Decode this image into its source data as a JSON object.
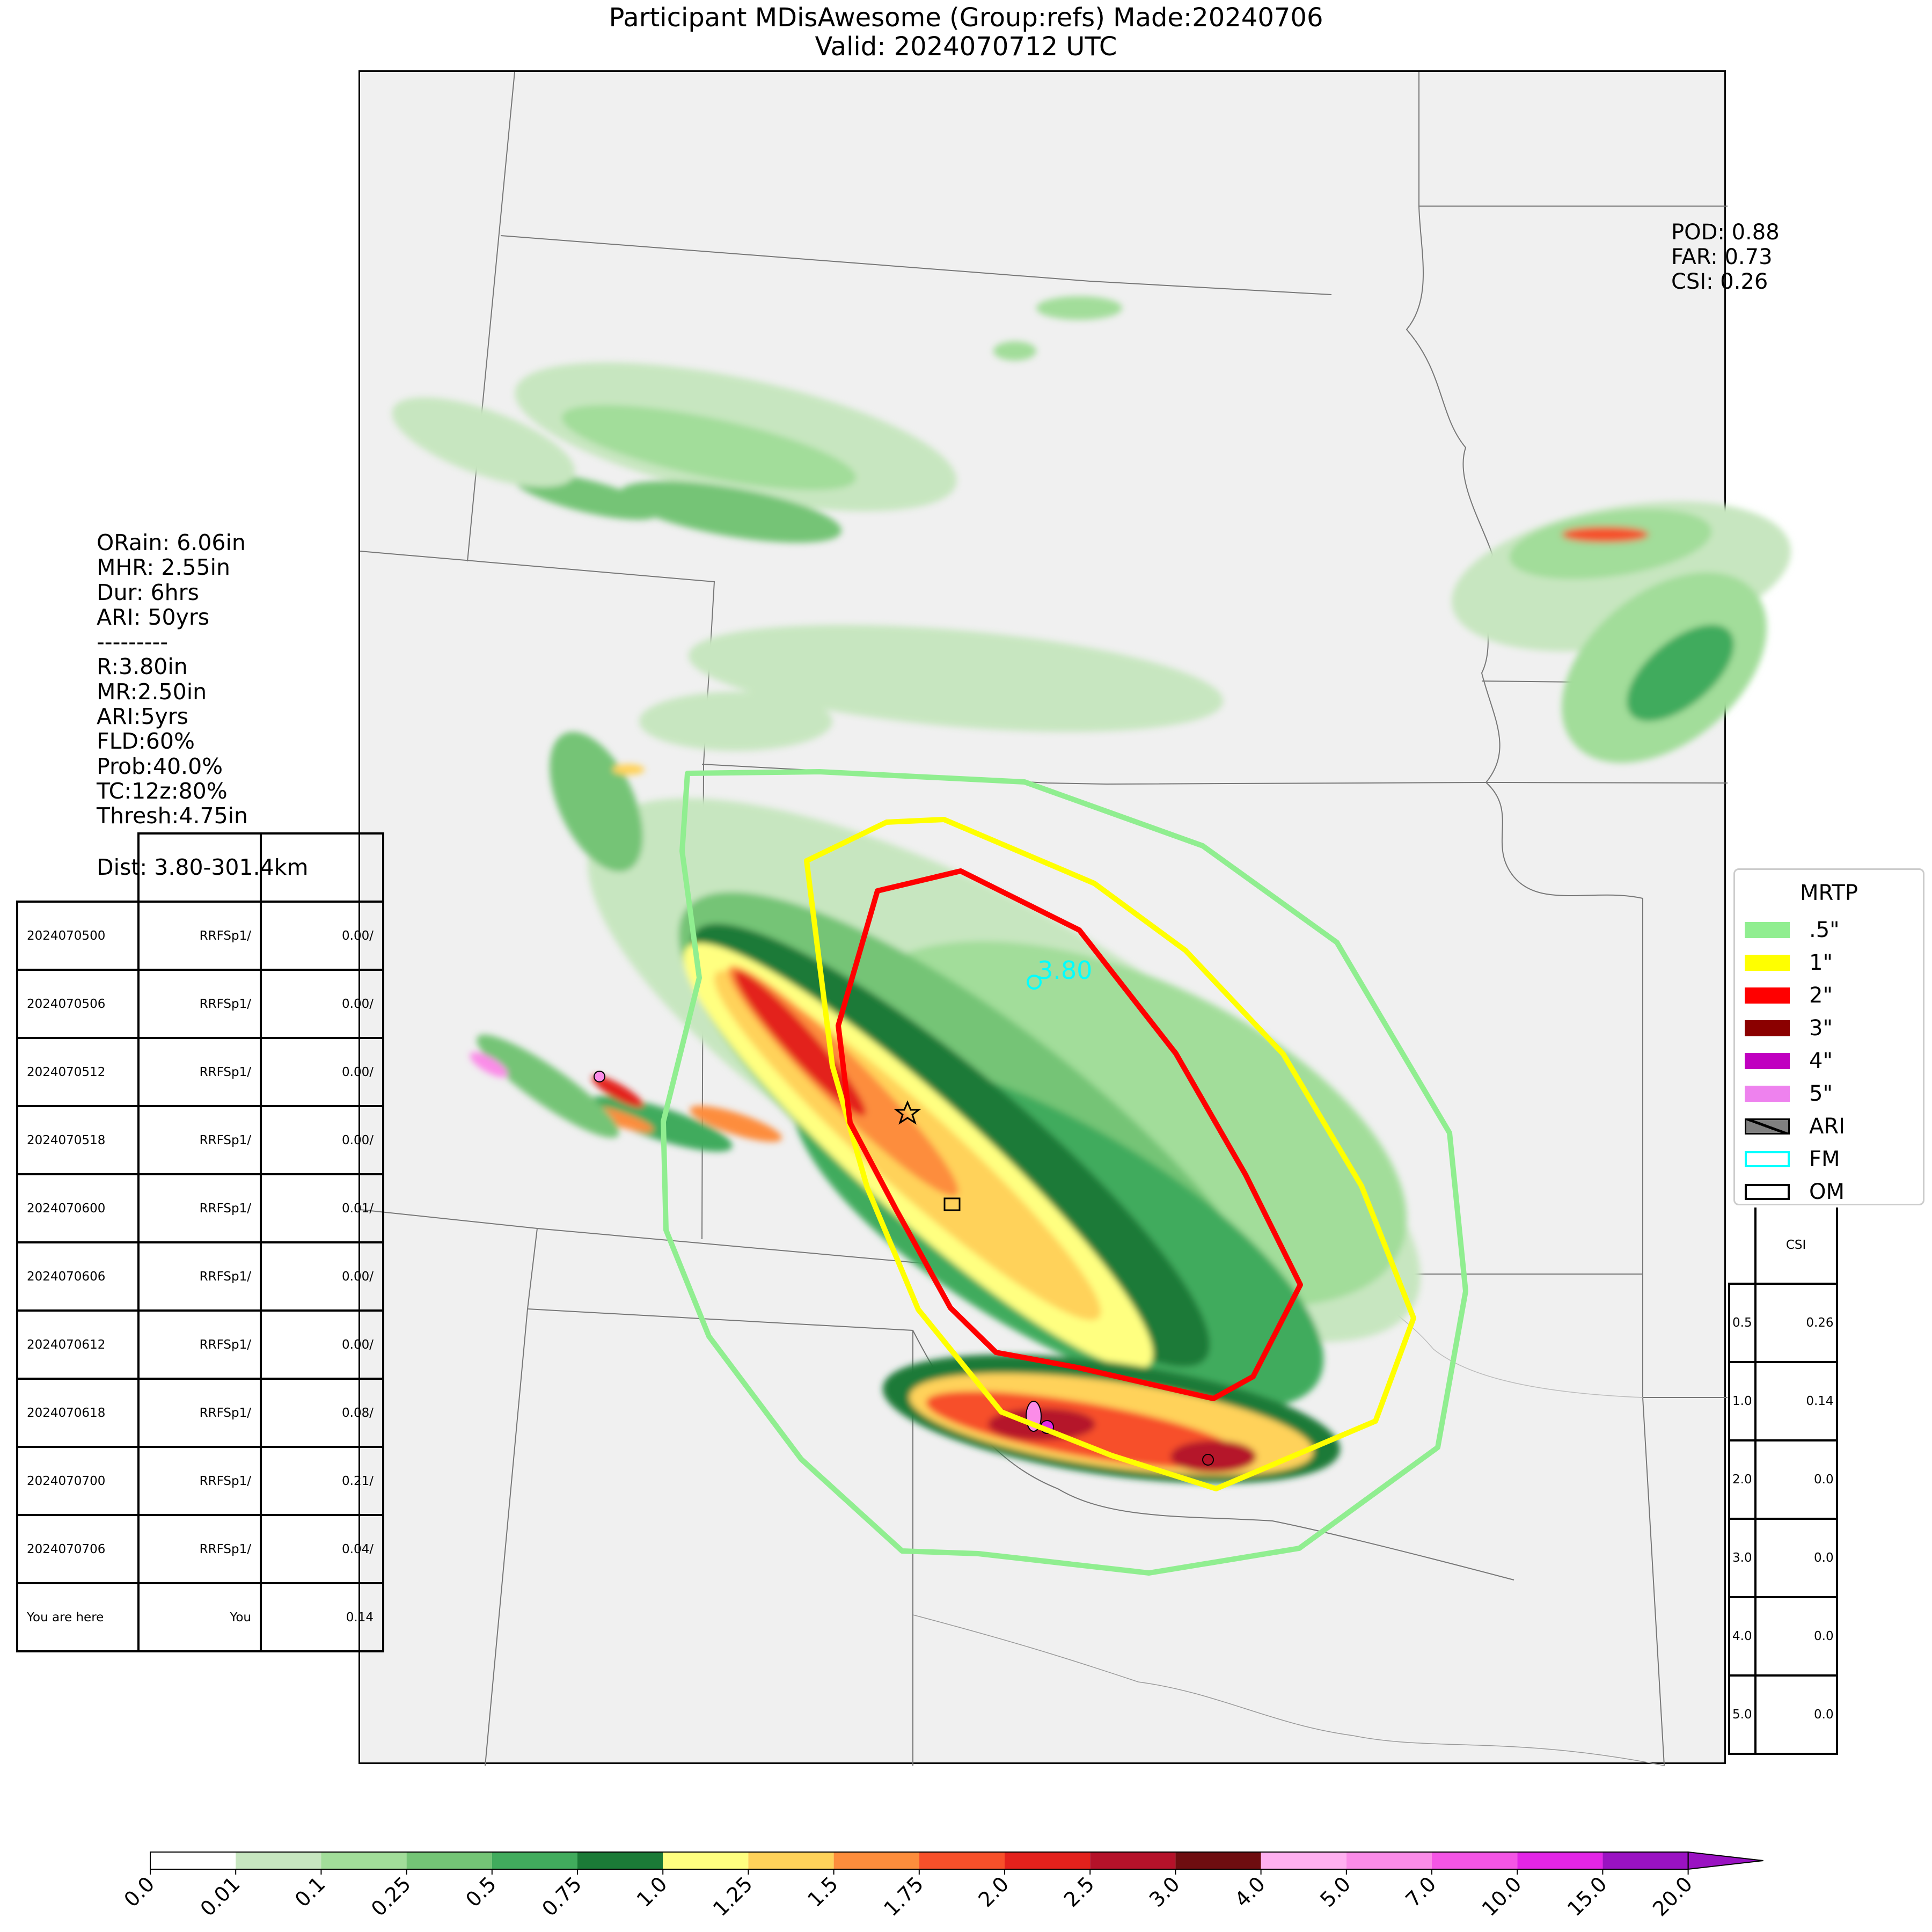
{
  "title": {
    "line1": "Participant MDisAwesome (Group:refs) Made:20240706",
    "line2": "Valid: 2024070712 UTC"
  },
  "scores": {
    "pod": "POD: 0.88",
    "far": "FAR: 0.73",
    "csi": "CSI: 0.26"
  },
  "info": {
    "lines": [
      "ORain: 6.06in",
      "MHR: 2.55in",
      "Dur: 6hrs",
      "ARI: 50yrs",
      "---------",
      "R:3.80in",
      "MR:2.50in",
      "ARI:5yrs",
      "FLD:60%",
      "Prob:40.0%",
      "TC:12z:80%",
      "Thresh:4.75in"
    ],
    "dist": "Dist: 3.80-301.4km"
  },
  "history_table": {
    "header": [
      "",
      "",
      ""
    ],
    "rows": [
      [
        "2024070500",
        "RRFSp1/",
        "0.00/"
      ],
      [
        "2024070506",
        "RRFSp1/",
        "0.00/"
      ],
      [
        "2024070512",
        "RRFSp1/",
        "0.00/"
      ],
      [
        "2024070518",
        "RRFSp1/",
        "0.00/"
      ],
      [
        "2024070600",
        "RRFSp1/",
        "0.01/"
      ],
      [
        "2024070606",
        "RRFSp1/",
        "0.00/"
      ],
      [
        "2024070612",
        "RRFSp1/",
        "0.00/"
      ],
      [
        "2024070618",
        "RRFSp1/",
        "0.08/"
      ],
      [
        "2024070700",
        "RRFSp1/",
        "0.21/"
      ],
      [
        "2024070706",
        "RRFSp1/",
        "0.04/"
      ],
      [
        "You are here",
        "You",
        "0.14"
      ]
    ]
  },
  "csi_table": {
    "header": "CSI",
    "rows": [
      [
        "0.5",
        "0.26"
      ],
      [
        "1.0",
        "0.14"
      ],
      [
        "2.0",
        "0.0"
      ],
      [
        "3.0",
        "0.0"
      ],
      [
        "4.0",
        "0.0"
      ],
      [
        "5.0",
        "0.0"
      ]
    ]
  },
  "map": {
    "fm_label": "3.80",
    "contour_colors": {
      "half": "#90ee90",
      "one": "#ffff00",
      "two": "#ff0000"
    },
    "fm_color": "#00ffff"
  },
  "legend": {
    "title": "MRTP",
    "items": [
      {
        "label": ".5\"",
        "color": "#90ee90",
        "kind": "fill"
      },
      {
        "label": "1\"",
        "color": "#ffff00",
        "kind": "fill"
      },
      {
        "label": "2\"",
        "color": "#ff0000",
        "kind": "fill"
      },
      {
        "label": "3\"",
        "color": "#8b0000",
        "kind": "fill"
      },
      {
        "label": "4\"",
        "color": "#c000c0",
        "kind": "fill"
      },
      {
        "label": "5\"",
        "color": "#ee82ee",
        "kind": "fill"
      },
      {
        "label": "ARI",
        "color": "#808080",
        "kind": "hatch"
      },
      {
        "label": "FM",
        "color": "#00ffff",
        "kind": "outline"
      },
      {
        "label": "OM",
        "color": "#000000",
        "kind": "outline"
      }
    ]
  },
  "colorbar": {
    "ticks": [
      "0.0",
      "0.01",
      "0.1",
      "0.25",
      "0.5",
      "0.75",
      "1.0",
      "1.25",
      "1.5",
      "1.75",
      "2.0",
      "2.5",
      "3.0",
      "4.0",
      "5.0",
      "7.0",
      "10.0",
      "15.0",
      "20.0"
    ],
    "colors": [
      "#ffffff",
      "#c7e6c0",
      "#a2dd9a",
      "#74c476",
      "#41ab5d",
      "#1b7a37",
      "#ffff80",
      "#ffd25a",
      "#fd8d3c",
      "#f7502a",
      "#e3211c",
      "#b5122a",
      "#6e0d10",
      "#ffb0f0",
      "#fb8ce8",
      "#f455e5",
      "#e325e6",
      "#9a12c2"
    ]
  }
}
